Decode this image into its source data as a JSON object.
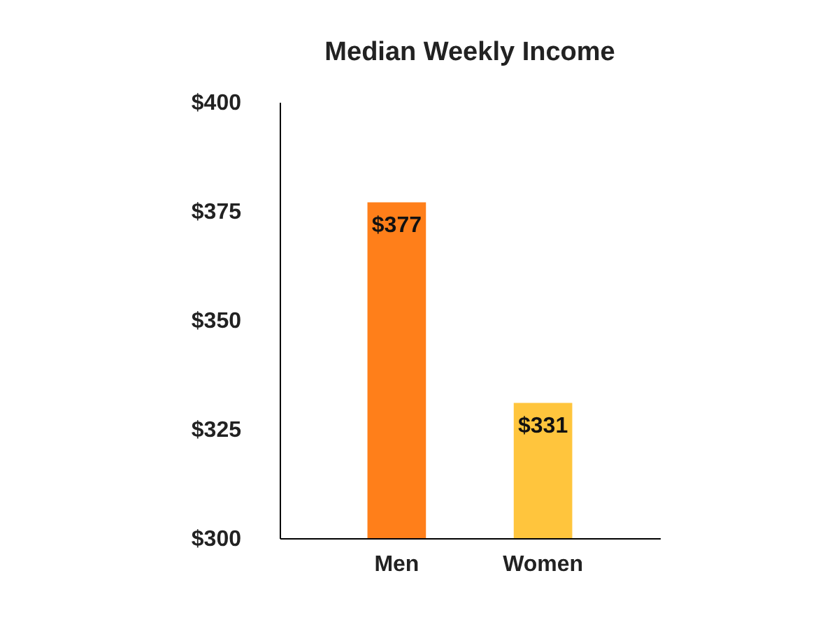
{
  "chart_data": {
    "type": "bar",
    "title": "Median Weekly Income",
    "categories": [
      "Men",
      "Women"
    ],
    "values": [
      377,
      331
    ],
    "colors": [
      "#ff7f1a",
      "#ffc53d"
    ],
    "value_labels": [
      "$377",
      "$331"
    ],
    "ylim": [
      300,
      400
    ],
    "yticks": [
      {
        "value": 300,
        "label": "$300"
      },
      {
        "value": 325,
        "label": "$325"
      },
      {
        "value": 350,
        "label": "$350"
      },
      {
        "value": 375,
        "label": "$375"
      },
      {
        "value": 400,
        "label": "$400"
      }
    ],
    "grid": false
  }
}
